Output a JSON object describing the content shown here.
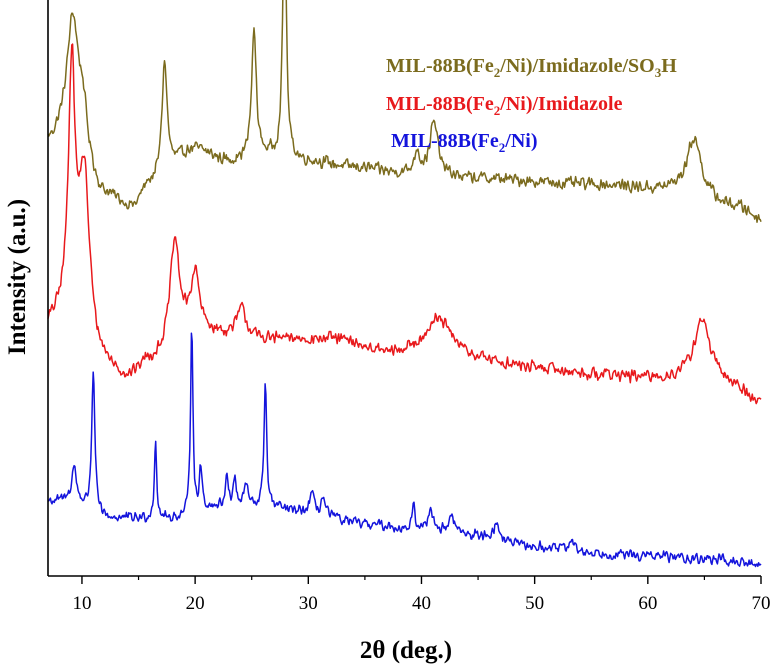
{
  "chart_data": {
    "type": "line",
    "title": "",
    "xlabel": "2θ (deg.)",
    "ylabel": "Intensity (a.u.)",
    "xlim": [
      7,
      70
    ],
    "ylim": [
      0,
      100
    ],
    "x_ticks": [
      10,
      20,
      30,
      40,
      50,
      60,
      70
    ],
    "y_ticks_shown": false,
    "legend_position": "top-right",
    "series": [
      {
        "name": "MIL-88B(Fe2/Ni)/Imidazole/SO3H",
        "legend_parts": [
          "MIL-88B(Fe",
          "2",
          "/Ni)/Imidazole/SO",
          "3",
          "H"
        ],
        "color": "#7b6b1e",
        "baseline": [
          [
            7,
            75
          ],
          [
            9,
            78
          ],
          [
            12,
            66
          ],
          [
            14.5,
            64
          ],
          [
            16,
            68
          ],
          [
            20,
            74
          ],
          [
            23,
            72
          ],
          [
            27,
            73
          ],
          [
            30,
            72
          ],
          [
            34,
            71
          ],
          [
            38,
            70
          ],
          [
            45,
            69
          ],
          [
            55,
            68
          ],
          [
            62,
            67
          ],
          [
            68,
            64
          ],
          [
            70,
            62
          ]
        ],
        "peaks": [
          [
            9.2,
            19,
            0.6
          ],
          [
            10.1,
            6,
            0.4
          ],
          [
            17.3,
            20,
            0.28
          ],
          [
            25.2,
            22,
            0.25
          ],
          [
            27.9,
            46,
            0.18
          ],
          [
            39.6,
            4,
            0.25
          ],
          [
            41.1,
            9,
            0.45
          ],
          [
            64.1,
            10,
            0.75
          ]
        ],
        "noise": 1.3
      },
      {
        "name": "MIL-88B(Fe2/Ni)/Imidazole",
        "legend_parts": [
          "MIL-88B(Fe",
          "2",
          "/Ni)/Imidazole"
        ],
        "color": "#e8191c",
        "baseline": [
          [
            7,
            43
          ],
          [
            8.3,
            44
          ],
          [
            11.5,
            36
          ],
          [
            14,
            34
          ],
          [
            16,
            37
          ],
          [
            20,
            42
          ],
          [
            26,
            41
          ],
          [
            32,
            41
          ],
          [
            38,
            38
          ],
          [
            45,
            37
          ],
          [
            50,
            36
          ],
          [
            55,
            35
          ],
          [
            62,
            34
          ],
          [
            67,
            33
          ],
          [
            70,
            30
          ]
        ],
        "peaks": [
          [
            9.1,
            43,
            0.35
          ],
          [
            10.2,
            30,
            0.6
          ],
          [
            18.2,
            18,
            0.5
          ],
          [
            20,
            10,
            0.45
          ],
          [
            24.1,
            5,
            0.5
          ],
          [
            41.5,
            7,
            1.6
          ],
          [
            64.8,
            11,
            0.9
          ]
        ],
        "noise": 1.3
      },
      {
        "name": "MIL-88B(Fe2/Ni)",
        "legend_parts": [
          "MIL-88B(Fe",
          "2",
          "/Ni)"
        ],
        "color": "#1414dc",
        "baseline": [
          [
            7,
            13
          ],
          [
            9,
            13
          ],
          [
            12,
            10
          ],
          [
            15,
            10
          ],
          [
            18,
            10
          ],
          [
            22,
            12
          ],
          [
            26,
            12
          ],
          [
            30,
            11
          ],
          [
            35,
            9
          ],
          [
            40,
            8
          ],
          [
            45,
            7
          ],
          [
            50,
            5
          ],
          [
            55,
            4
          ],
          [
            60,
            3.5
          ],
          [
            65,
            3
          ],
          [
            70,
            2
          ]
        ],
        "peaks": [
          [
            9.3,
            6,
            0.25
          ],
          [
            11,
            25,
            0.17
          ],
          [
            16.5,
            14,
            0.12
          ],
          [
            19.7,
            34,
            0.12
          ],
          [
            20.5,
            7,
            0.15
          ],
          [
            22.8,
            6,
            0.15
          ],
          [
            23.5,
            5,
            0.15
          ],
          [
            24.5,
            4,
            0.2
          ],
          [
            26.2,
            22,
            0.14
          ],
          [
            30.3,
            3.5,
            0.2
          ],
          [
            31.3,
            3,
            0.2
          ],
          [
            39.3,
            4,
            0.15
          ],
          [
            40.8,
            4,
            0.25
          ],
          [
            42.7,
            3,
            0.3
          ],
          [
            46.6,
            2.5,
            0.3
          ],
          [
            53.2,
            2,
            0.3
          ]
        ],
        "noise": 1.1
      }
    ]
  }
}
